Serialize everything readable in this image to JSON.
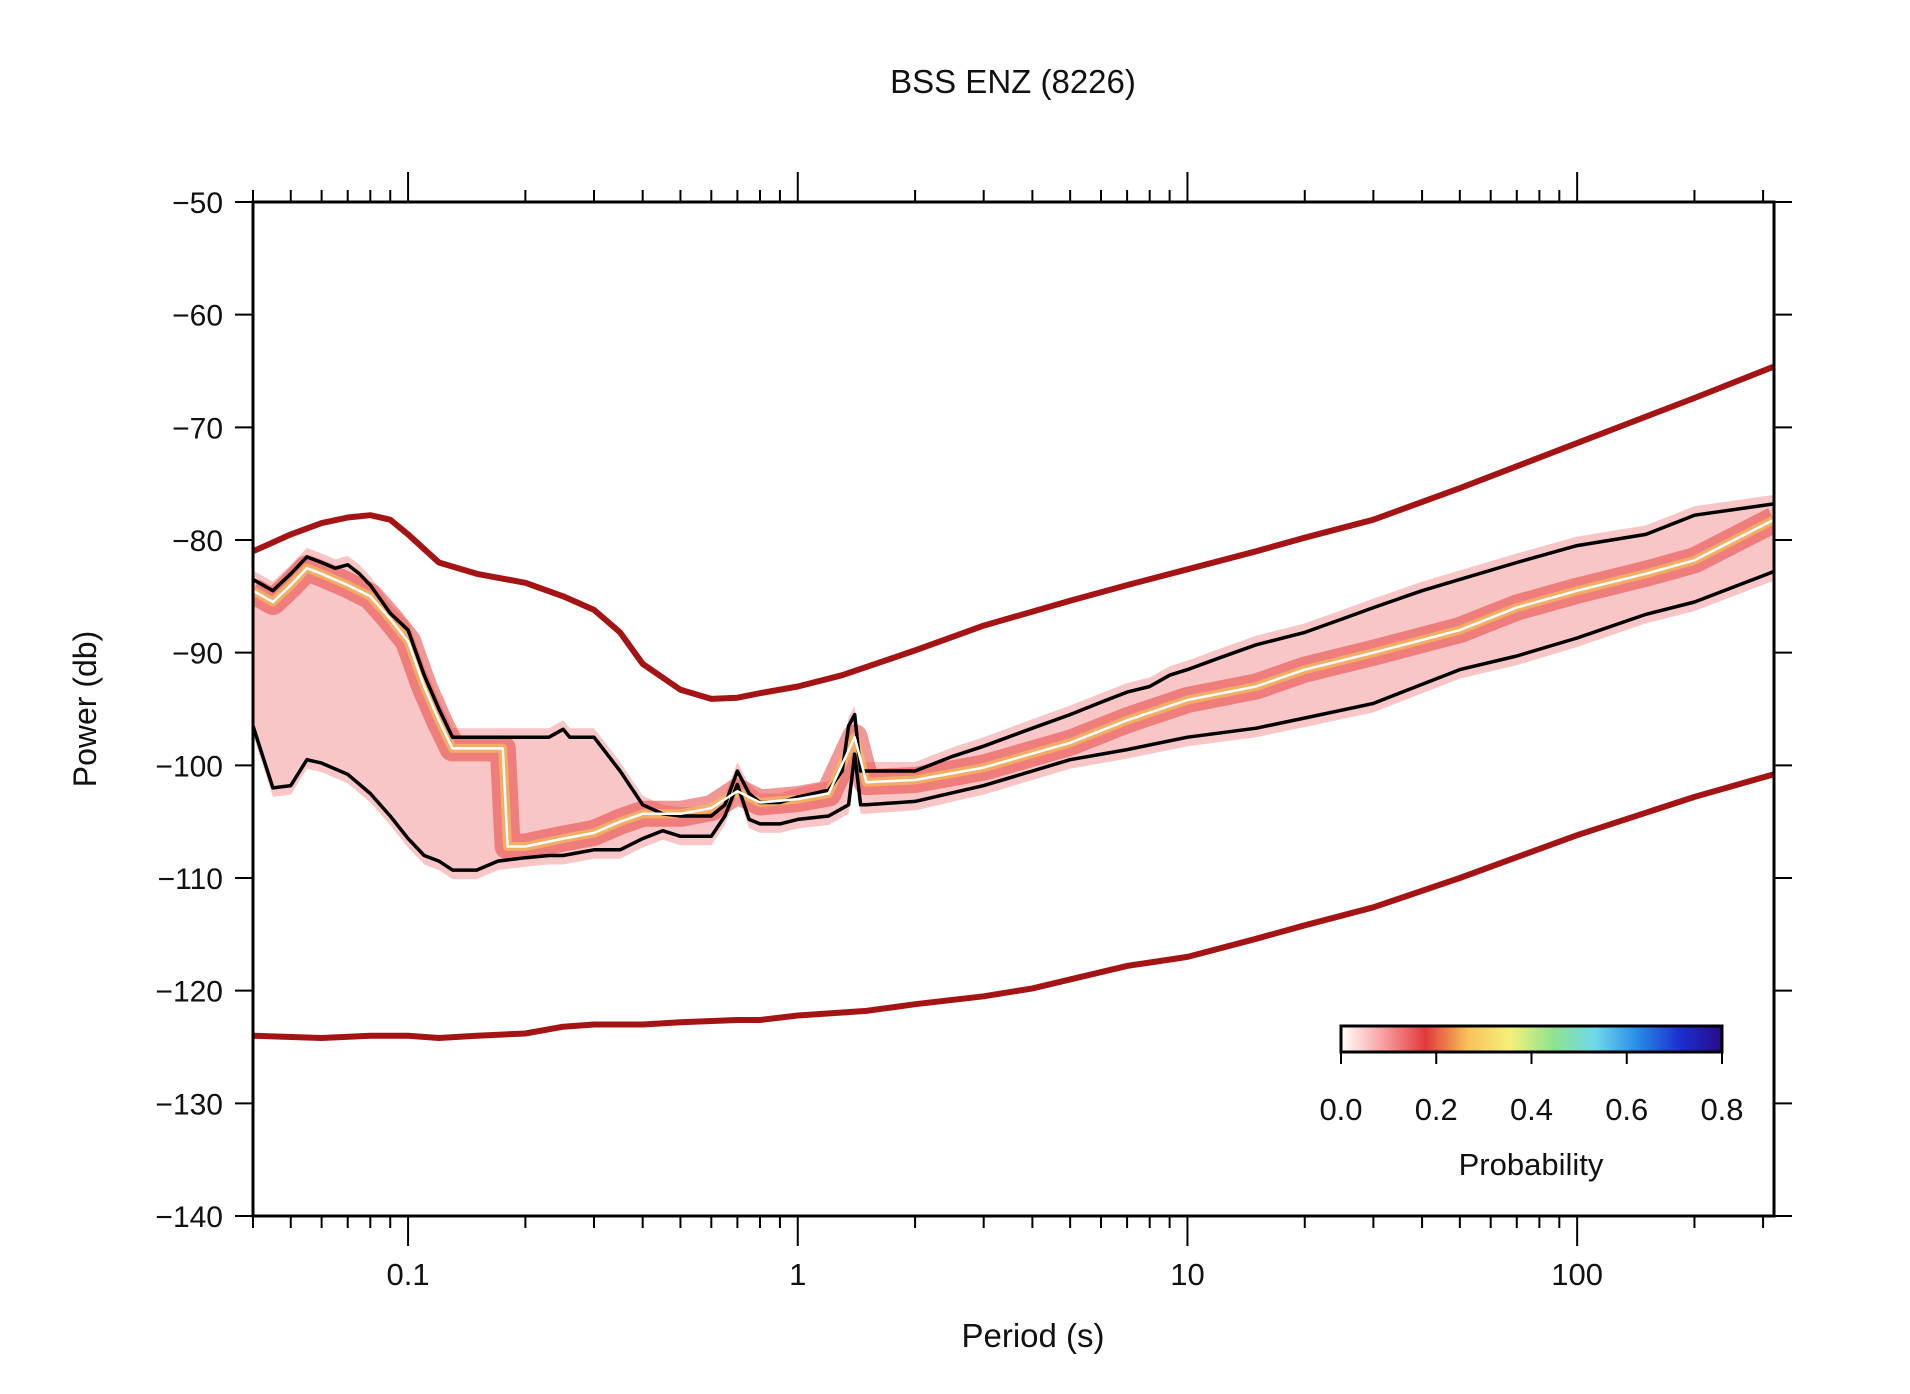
{
  "chart_data": {
    "type": "line",
    "title": "BSS ENZ (8226)",
    "xlabel": "Period (s)",
    "ylabel": "Power (db)",
    "x_scale": "log",
    "xlim": [
      0.04,
      320
    ],
    "ylim": [
      -140,
      -50
    ],
    "x_tick_labels": [
      "0.1",
      "1",
      "10",
      "100"
    ],
    "x_tick_values": [
      0.1,
      1,
      10,
      100
    ],
    "y_ticks": [
      -50,
      -60,
      -70,
      -80,
      -90,
      -100,
      -110,
      -120,
      -130,
      -140
    ],
    "y_tick_labels": [
      "−50",
      "−60",
      "−70",
      "−80",
      "−90",
      "−100",
      "−110",
      "−120",
      "−130",
      "−140"
    ],
    "colorbar": {
      "label": "Probability",
      "ticks": [
        "0.0",
        "0.2",
        "0.4",
        "0.6",
        "0.8"
      ],
      "stops": [
        "#ffffff",
        "#f6a0a0",
        "#e03a3a",
        "#f7c25a",
        "#f5f07a",
        "#8fe38f",
        "#6fd8e8",
        "#2a8be8",
        "#1a2fd0",
        "#2a0a8a"
      ],
      "placement": "bottom-right"
    },
    "series": [
      {
        "name": "",
        "role": "high-noise-model",
        "color": "#a41414",
        "x": [
          0.04,
          0.05,
          0.06,
          0.07,
          0.08,
          0.09,
          0.1,
          0.12,
          0.15,
          0.2,
          0.25,
          0.3,
          0.35,
          0.4,
          0.5,
          0.6,
          0.7,
          0.8,
          1,
          1.3,
          2,
          3,
          5,
          7,
          10,
          15,
          20,
          30,
          50,
          100,
          200,
          320
        ],
        "y": [
          -81,
          -79.5,
          -78.5,
          -78,
          -77.8,
          -78.2,
          -79.5,
          -82,
          -83,
          -83.8,
          -85,
          -86.2,
          -88.2,
          -91,
          -93.3,
          -94.1,
          -94,
          -93.6,
          -93,
          -92,
          -89.8,
          -87.6,
          -85.4,
          -84,
          -82.6,
          -81,
          -79.8,
          -78.2,
          -75.4,
          -71.4,
          -67.4,
          -64.6
        ]
      },
      {
        "name": "",
        "role": "low-noise-model",
        "color": "#a41414",
        "x": [
          0.04,
          0.06,
          0.08,
          0.1,
          0.12,
          0.15,
          0.2,
          0.25,
          0.3,
          0.4,
          0.5,
          0.7,
          0.8,
          1,
          1.5,
          2,
          3,
          4,
          5,
          7,
          10,
          15,
          20,
          30,
          50,
          100,
          200,
          320
        ],
        "y": [
          -124,
          -124.2,
          -124,
          -124,
          -124.2,
          -124,
          -123.8,
          -123.2,
          -123,
          -123,
          -122.8,
          -122.6,
          -122.6,
          -122.2,
          -121.8,
          -121.2,
          -120.5,
          -119.8,
          -119,
          -117.8,
          -117,
          -115.4,
          -114.2,
          -112.6,
          -110,
          -106.2,
          -102.8,
          -100.8
        ]
      },
      {
        "name": "",
        "role": "upper-percentile",
        "color": "#000000",
        "x": [
          0.04,
          0.045,
          0.05,
          0.055,
          0.06,
          0.065,
          0.07,
          0.075,
          0.08,
          0.09,
          0.1,
          0.11,
          0.12,
          0.13,
          0.15,
          0.17,
          0.2,
          0.23,
          0.25,
          0.26,
          0.27,
          0.3,
          0.35,
          0.4,
          0.45,
          0.5,
          0.55,
          0.6,
          0.65,
          0.7,
          0.75,
          0.8,
          0.9,
          1,
          1.1,
          1.2,
          1.3,
          1.35,
          1.4,
          1.45,
          1.5,
          2,
          2.5,
          3,
          4,
          5,
          6,
          7,
          8,
          9,
          10,
          12,
          15,
          20,
          25,
          30,
          40,
          50,
          70,
          100,
          150,
          200,
          320
        ],
        "y": [
          -83.5,
          -84.5,
          -83,
          -81.5,
          -82,
          -82.5,
          -82.2,
          -83,
          -84,
          -86.5,
          -88,
          -92,
          -95,
          -97.5,
          -97.5,
          -97.5,
          -97.5,
          -97.5,
          -96.8,
          -97.5,
          -97.5,
          -97.5,
          -100.5,
          -103.5,
          -104.3,
          -104.5,
          -104.5,
          -104.5,
          -103.5,
          -100.5,
          -102.5,
          -103.3,
          -103.3,
          -102.8,
          -102.5,
          -102.2,
          -100.5,
          -96.5,
          -95.5,
          -100.5,
          -100.5,
          -100.5,
          -99.2,
          -98.3,
          -96.7,
          -95.5,
          -94.4,
          -93.5,
          -93,
          -92,
          -91.5,
          -90.5,
          -89.3,
          -88.2,
          -87,
          -86,
          -84.5,
          -83.5,
          -82,
          -80.5,
          -79.5,
          -77.8,
          -76.8
        ]
      },
      {
        "name": "",
        "role": "lower-percentile",
        "color": "#000000",
        "x": [
          0.04,
          0.045,
          0.05,
          0.055,
          0.06,
          0.07,
          0.08,
          0.09,
          0.1,
          0.11,
          0.12,
          0.13,
          0.15,
          0.17,
          0.2,
          0.23,
          0.25,
          0.3,
          0.35,
          0.4,
          0.45,
          0.5,
          0.6,
          0.65,
          0.7,
          0.75,
          0.8,
          0.9,
          1,
          1.2,
          1.35,
          1.4,
          1.45,
          1.5,
          2,
          3,
          4,
          5,
          7,
          10,
          15,
          20,
          30,
          50,
          70,
          100,
          150,
          200,
          320
        ],
        "y": [
          -96.5,
          -102,
          -101.8,
          -99.5,
          -99.8,
          -100.8,
          -102.5,
          -104.5,
          -106.5,
          -108,
          -108.5,
          -109.3,
          -109.3,
          -108.5,
          -108.2,
          -108,
          -108,
          -107.5,
          -107.5,
          -106.5,
          -105.8,
          -106.3,
          -106.3,
          -104.5,
          -101.7,
          -104.8,
          -105.2,
          -105.2,
          -104.8,
          -104.5,
          -103.5,
          -99,
          -103.5,
          -103.5,
          -103.2,
          -101.8,
          -100.5,
          -99.5,
          -98.6,
          -97.5,
          -96.7,
          -95.8,
          -94.5,
          -91.5,
          -90.3,
          -88.7,
          -86.6,
          -85.5,
          -82.8
        ]
      },
      {
        "name": "",
        "role": "mode",
        "color": "#ffffff",
        "x": [
          0.04,
          0.045,
          0.05,
          0.055,
          0.06,
          0.07,
          0.08,
          0.09,
          0.1,
          0.11,
          0.12,
          0.13,
          0.15,
          0.175,
          0.18,
          0.2,
          0.25,
          0.3,
          0.35,
          0.4,
          0.5,
          0.6,
          0.7,
          0.8,
          1,
          1.2,
          1.4,
          1.5,
          2,
          3,
          5,
          7,
          10,
          15,
          20,
          30,
          50,
          70,
          100,
          150,
          200,
          320
        ],
        "y": [
          -84.5,
          -85.5,
          -84,
          -82.5,
          -83,
          -84,
          -85,
          -87,
          -89,
          -93,
          -96,
          -98.5,
          -98.5,
          -98.5,
          -107.2,
          -107.2,
          -106.5,
          -106,
          -105,
          -104.3,
          -104.3,
          -103.8,
          -102.3,
          -103.3,
          -103,
          -102.5,
          -97.5,
          -101.5,
          -101.3,
          -100.2,
          -98,
          -96,
          -94.2,
          -93,
          -91.5,
          -90,
          -88,
          -86,
          -84.5,
          -83,
          -81.8,
          -78.2
        ]
      }
    ]
  }
}
